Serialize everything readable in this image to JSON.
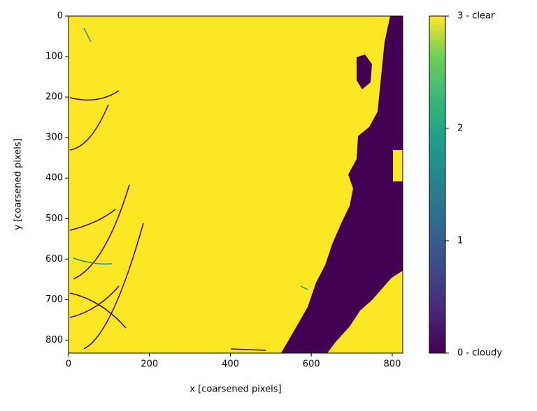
{
  "chart_data": {
    "type": "image",
    "xlabel": "x [coarsened pixels]",
    "ylabel": "y [coarsened pixels]",
    "xlim": [
      0,
      826
    ],
    "ylim": [
      0,
      832
    ],
    "y_inverted": true,
    "xticks": [
      0,
      200,
      400,
      600,
      800
    ],
    "yticks": [
      0,
      100,
      200,
      300,
      400,
      500,
      600,
      700,
      800
    ],
    "colormap": "viridis",
    "colorbar": {
      "lim": [
        0,
        3
      ],
      "ticks": [
        {
          "value": 0,
          "label": "0 - cloudy"
        },
        1,
        2,
        {
          "value": 3,
          "label": "3 - clear"
        }
      ]
    }
  }
}
